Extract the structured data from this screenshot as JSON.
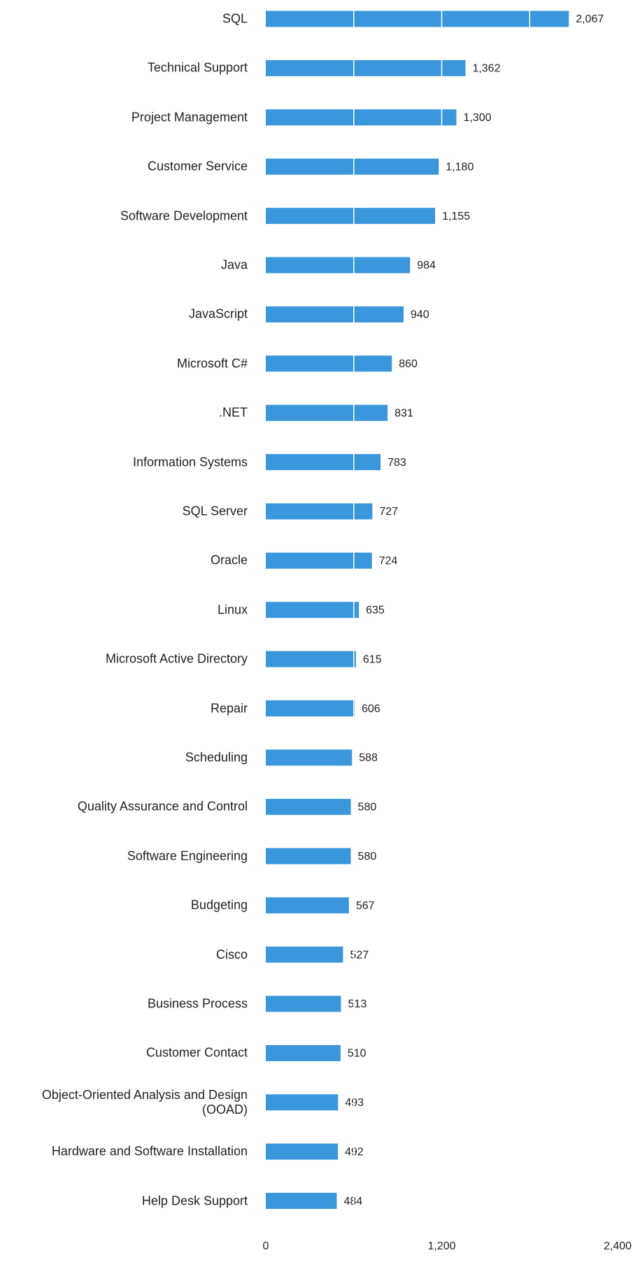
{
  "chart_data": {
    "type": "barh",
    "categories": [
      "SQL",
      "Technical Support",
      "Project Management",
      "Customer Service",
      "Software Development",
      "Java",
      "JavaScript",
      "Microsoft C#",
      ".NET",
      "Information Systems",
      "SQL Server",
      "Oracle",
      "Linux",
      "Microsoft Active Directory",
      "Repair",
      "Scheduling",
      "Quality Assurance and Control",
      "Software Engineering",
      "Budgeting",
      "Cisco",
      "Business Process",
      "Customer Contact",
      "Object-Oriented Analysis and Design (OOAD)",
      "Hardware and Software Installation",
      "Help Desk Support"
    ],
    "values": [
      2067,
      1362,
      1300,
      1180,
      1155,
      984,
      940,
      860,
      831,
      783,
      727,
      724,
      635,
      615,
      606,
      588,
      580,
      580,
      567,
      527,
      513,
      510,
      493,
      492,
      484
    ],
    "value_labels": [
      "2,067",
      "1,362",
      "1,300",
      "1,180",
      "1,155",
      "984",
      "940",
      "860",
      "831",
      "783",
      "727",
      "724",
      "635",
      "615",
      "606",
      "588",
      "580",
      "580",
      "567",
      "527",
      "513",
      "510",
      "493",
      "492",
      "484"
    ],
    "color": "#3a97dc",
    "xlim": [
      0,
      2400
    ],
    "xticks": [
      0,
      {
        "value": 1200,
        "label": "1,200"
      },
      {
        "value": 2400,
        "label": "2,400"
      }
    ],
    "grid_lines": [
      600,
      1200,
      1800
    ],
    "grid_color": "#ffffff"
  }
}
